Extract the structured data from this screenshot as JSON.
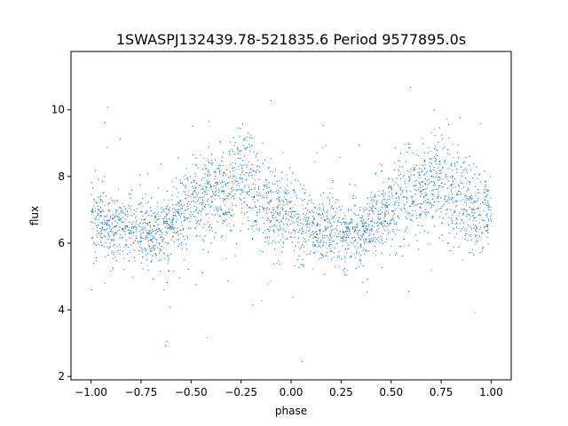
{
  "chart_data": {
    "type": "scatter",
    "title": "1SWASPJ132439.78-521835.6 Period 9577895.0s",
    "xlabel": "phase",
    "ylabel": "flux",
    "xlim": [
      -1.1,
      1.1
    ],
    "ylim": [
      1.9,
      11.75
    ],
    "x_ticks": [
      -1.0,
      -0.75,
      -0.5,
      -0.25,
      0.0,
      0.25,
      0.5,
      0.75,
      1.0
    ],
    "x_tick_labels": [
      "−1.00",
      "−0.75",
      "−0.50",
      "−0.25",
      "0.00",
      "0.25",
      "0.50",
      "0.75",
      "1.00"
    ],
    "y_ticks": [
      2,
      4,
      6,
      8,
      10
    ],
    "y_tick_labels": [
      "2",
      "4",
      "6",
      "8",
      "10"
    ],
    "grid": false,
    "legend": "none",
    "marker_color": "#1f77b4",
    "series": [
      {
        "x": [
          -1.0,
          -0.95,
          -0.9,
          -0.85,
          -0.8,
          -0.75,
          -0.7,
          -0.65,
          -0.6,
          -0.55,
          -0.5,
          -0.45,
          -0.4,
          -0.35,
          -0.3,
          -0.25,
          -0.2,
          -0.15,
          -0.1,
          -0.05,
          0.0,
          0.05,
          0.1,
          0.15,
          0.2,
          0.25,
          0.3,
          0.35,
          0.4,
          0.45,
          0.5,
          0.55,
          0.6,
          0.65,
          0.7,
          0.75,
          0.8,
          0.85,
          0.9,
          0.95,
          1.0
        ],
        "y": [
          6.9,
          6.6,
          6.4,
          6.4,
          6.5,
          6.4,
          6.3,
          6.3,
          6.5,
          6.9,
          7.1,
          7.4,
          7.6,
          7.5,
          7.8,
          7.9,
          7.6,
          7.3,
          7.0,
          6.8,
          6.9,
          6.5,
          6.4,
          6.4,
          6.5,
          6.4,
          6.3,
          6.3,
          6.6,
          6.9,
          7.1,
          7.4,
          7.5,
          7.5,
          7.8,
          7.9,
          7.6,
          7.3,
          7.0,
          6.8,
          6.9
        ],
        "spread": [
          1.0,
          1.0,
          0.9,
          0.9,
          0.9,
          0.9,
          0.8,
          0.8,
          0.9,
          1.0,
          1.1,
          1.2,
          1.2,
          1.2,
          1.3,
          1.4,
          1.4,
          1.3,
          1.2,
          1.1,
          1.0,
          1.0,
          0.9,
          0.9,
          0.9,
          0.9,
          0.8,
          0.8,
          0.9,
          1.0,
          1.1,
          1.2,
          1.2,
          1.2,
          1.3,
          1.4,
          1.4,
          1.3,
          1.2,
          1.1,
          1.0
        ]
      }
    ]
  }
}
